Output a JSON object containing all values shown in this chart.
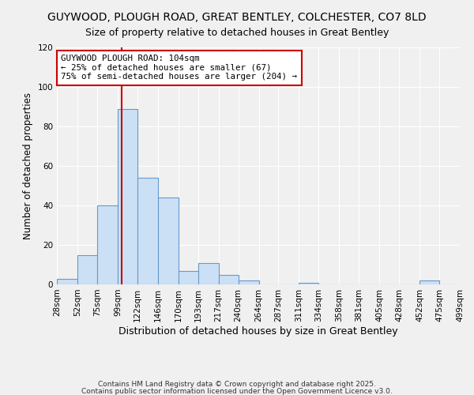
{
  "title": "GUYWOOD, PLOUGH ROAD, GREAT BENTLEY, COLCHESTER, CO7 8LD",
  "subtitle": "Size of property relative to detached houses in Great Bentley",
  "xlabel": "Distribution of detached houses by size in Great Bentley",
  "ylabel": "Number of detached properties",
  "bar_values": [
    3,
    15,
    40,
    89,
    54,
    44,
    7,
    11,
    5,
    2,
    0,
    0,
    1,
    0,
    0,
    0,
    0,
    0,
    2,
    0
  ],
  "bin_edges": [
    28,
    52,
    75,
    99,
    122,
    146,
    170,
    193,
    217,
    240,
    264,
    287,
    311,
    334,
    358,
    381,
    405,
    428,
    452,
    475,
    499
  ],
  "tick_labels": [
    "28sqm",
    "52sqm",
    "75sqm",
    "99sqm",
    "122sqm",
    "146sqm",
    "170sqm",
    "193sqm",
    "217sqm",
    "240sqm",
    "264sqm",
    "287sqm",
    "311sqm",
    "334sqm",
    "358sqm",
    "381sqm",
    "405sqm",
    "428sqm",
    "452sqm",
    "475sqm",
    "499sqm"
  ],
  "bar_color": "#cce0f5",
  "bar_edge_color": "#6699cc",
  "vline_x": 104,
  "vline_color": "#cc0000",
  "ylim": [
    0,
    120
  ],
  "yticks": [
    0,
    20,
    40,
    60,
    80,
    100,
    120
  ],
  "annotation_line1": "GUYWOOD PLOUGH ROAD: 104sqm",
  "annotation_line2": "← 25% of detached houses are smaller (67)",
  "annotation_line3": "75% of semi-detached houses are larger (204) →",
  "annotation_box_color": "#ffffff",
  "annotation_box_edge": "#cc0000",
  "footer1": "Contains HM Land Registry data © Crown copyright and database right 2025.",
  "footer2": "Contains public sector information licensed under the Open Government Licence v3.0.",
  "background_color": "#f0f0f0",
  "grid_color": "#ffffff",
  "tick_fontsize": 7.5,
  "ylabel_fontsize": 8.5,
  "xlabel_fontsize": 9
}
